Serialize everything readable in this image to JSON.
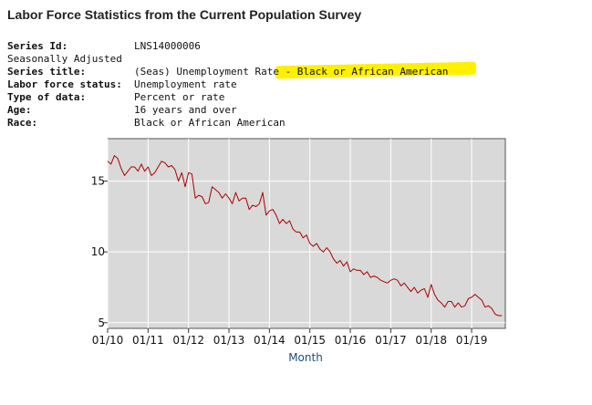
{
  "title": "Labor Force Statistics from the Current Population Survey",
  "series": {
    "series_id_label": "Series Id:",
    "series_id": "LNS14000006",
    "seasonal": "Seasonally Adjusted",
    "title_label": "Series title:",
    "title_value": "(Seas) Unemployment Rate - Black or African American",
    "status_label": "Labor force status:",
    "status_value": "Unemployment rate",
    "type_label": "Type of data:",
    "type_value": "Percent or rate",
    "age_label": "Age:",
    "age_value": "16 years and over",
    "race_label": "Race:",
    "race_value": "Black or African American"
  },
  "highlight_color": "#fff000",
  "chart_data": {
    "type": "line",
    "title": "",
    "xlabel": "Month",
    "ylabel": "",
    "xlim": [
      0,
      118
    ],
    "ylim": [
      4.6,
      18.0
    ],
    "x_ticks": [
      0,
      12,
      24,
      36,
      48,
      60,
      72,
      84,
      96,
      108
    ],
    "x_tick_labels": [
      "01/10",
      "01/11",
      "01/12",
      "01/13",
      "01/14",
      "01/15",
      "01/16",
      "01/17",
      "01/18",
      "01/19"
    ],
    "y_ticks": [
      5,
      10,
      15
    ],
    "y_tick_labels": [
      "5",
      "10",
      "15"
    ],
    "grid": true,
    "line_color": "#aa0000",
    "plot_background": "#d9d9d9",
    "series": [
      {
        "name": "Unemployment Rate - Black or African American",
        "values": [
          16.4,
          16.2,
          16.8,
          16.6,
          15.9,
          15.4,
          15.7,
          16.0,
          16.0,
          15.7,
          16.2,
          15.7,
          16.0,
          15.4,
          15.6,
          16.0,
          16.4,
          16.3,
          16.0,
          16.1,
          15.8,
          15.0,
          15.6,
          14.6,
          15.6,
          15.5,
          13.8,
          14.0,
          13.9,
          13.4,
          13.5,
          14.6,
          14.4,
          14.2,
          13.8,
          14.1,
          13.8,
          13.4,
          14.2,
          13.6,
          13.8,
          13.8,
          13.0,
          13.3,
          13.2,
          13.4,
          14.2,
          12.6,
          12.9,
          13.0,
          12.6,
          12.0,
          12.3,
          12.0,
          12.2,
          11.6,
          11.4,
          11.4,
          11.0,
          11.2,
          10.6,
          10.4,
          10.6,
          10.2,
          10.0,
          10.3,
          10.0,
          9.5,
          9.2,
          9.4,
          9.0,
          9.3,
          8.6,
          8.8,
          8.7,
          8.7,
          8.4,
          8.6,
          8.2,
          8.3,
          8.2,
          8.0,
          7.9,
          7.8,
          8.0,
          8.1,
          8.0,
          7.6,
          7.8,
          7.5,
          7.2,
          7.5,
          7.1,
          7.3,
          7.4,
          6.8,
          7.7,
          7.0,
          6.6,
          6.4,
          6.1,
          6.5,
          6.5,
          6.1,
          6.4,
          6.1,
          6.2,
          6.7,
          6.8,
          7.0,
          6.8,
          6.6,
          6.1,
          6.2,
          6.0,
          5.6,
          5.5,
          5.5
        ]
      }
    ]
  }
}
